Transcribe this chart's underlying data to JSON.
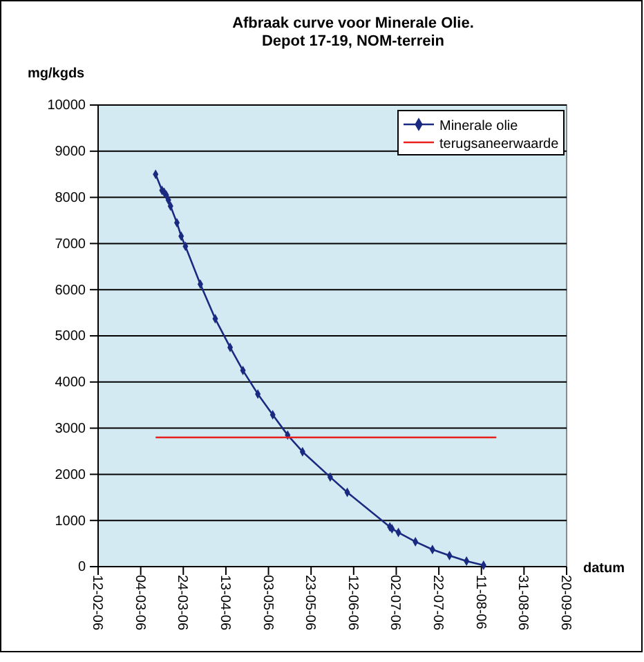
{
  "chart_data": {
    "type": "line",
    "title": "Afbraak curve voor Minerale Olie. Depot 17-19, NOM-terrein",
    "ylabel": "mg/kgds",
    "xlabel": "datum",
    "xlim": [
      "2006-02-12",
      "2006-09-20"
    ],
    "xticks": [
      {
        "value": "2006-02-12",
        "label": "12-02-06"
      },
      {
        "value": "2006-03-04",
        "label": "04-03-06"
      },
      {
        "value": "2006-03-24",
        "label": "24-03-06"
      },
      {
        "value": "2006-04-13",
        "label": "13-04-06"
      },
      {
        "value": "2006-05-03",
        "label": "03-05-06"
      },
      {
        "value": "2006-05-23",
        "label": "23-05-06"
      },
      {
        "value": "2006-06-12",
        "label": "12-06-06"
      },
      {
        "value": "2006-07-02",
        "label": "02-07-06"
      },
      {
        "value": "2006-07-22",
        "label": "22-07-06"
      },
      {
        "value": "2006-08-11",
        "label": "11-08-06"
      },
      {
        "value": "2006-08-31",
        "label": "31-08-06"
      },
      {
        "value": "2006-09-20",
        "label": "20-09-06"
      }
    ],
    "ylim": [
      0,
      10000
    ],
    "yticks": [
      0,
      1000,
      2000,
      3000,
      4000,
      5000,
      6000,
      7000,
      8000,
      9000,
      10000
    ],
    "grid": "y",
    "legend": "top right",
    "series": [
      {
        "name": "Minerale olie",
        "color": "#1a2a80",
        "marker": "diamond",
        "x": [
          "2006-03-11",
          "2006-03-14",
          "2006-03-15",
          "2006-03-16",
          "2006-03-17",
          "2006-03-18",
          "2006-03-21",
          "2006-03-23",
          "2006-03-25",
          "2006-04-01",
          "2006-04-08",
          "2006-04-15",
          "2006-04-21",
          "2006-04-28",
          "2006-05-05",
          "2006-05-12",
          "2006-05-19",
          "2006-06-01",
          "2006-06-09",
          "2006-06-29",
          "2006-06-30",
          "2006-07-03",
          "2006-07-11",
          "2006-07-19",
          "2006-07-27",
          "2006-08-04",
          "2006-08-12"
        ],
        "values": [
          8500,
          8150,
          8110,
          8050,
          7940,
          7810,
          7450,
          7160,
          6940,
          6120,
          5370,
          4750,
          4250,
          3740,
          3290,
          2850,
          2490,
          1940,
          1610,
          860,
          820,
          740,
          540,
          370,
          240,
          120,
          30
        ]
      },
      {
        "name": "terugsaneerwaarde",
        "color": "#e8201c",
        "marker": "none",
        "x": [
          "2006-03-11",
          "2006-08-18"
        ],
        "values": [
          2800,
          2800
        ]
      }
    ]
  }
}
